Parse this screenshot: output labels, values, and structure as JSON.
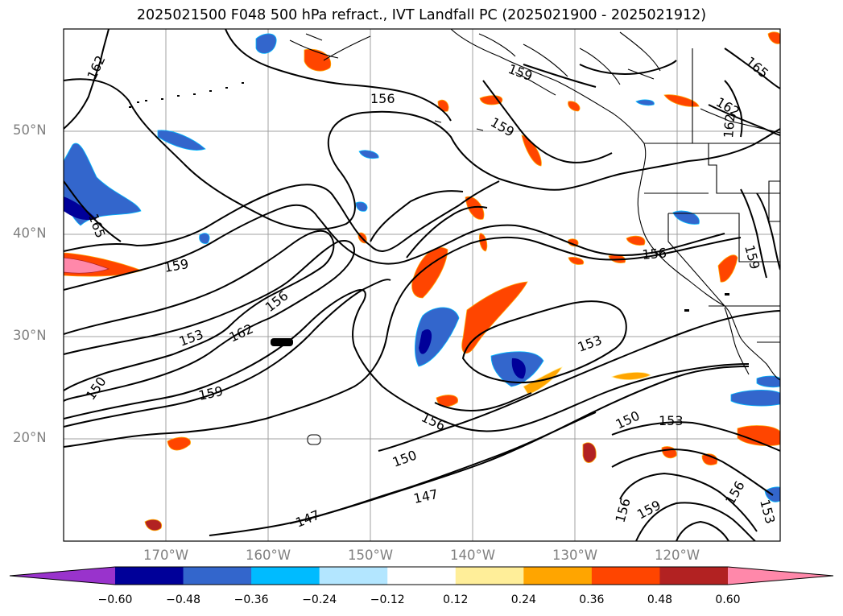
{
  "title": "2025021500 F048 500 hPa refract., IVT Landfall PC (2025021900 - 2025021912)",
  "lat_labels": [
    "50°N",
    "40°N",
    "30°N",
    "20°N"
  ],
  "lon_labels": [
    "170°W",
    "160°W",
    "150°W",
    "140°W",
    "130°W",
    "120°W"
  ],
  "contour_labels": [
    "162",
    "165",
    "159",
    "156",
    "153",
    "162",
    "150",
    "159",
    "156",
    "153",
    "150",
    "147",
    "147",
    "156",
    "159",
    "156",
    "150",
    "153",
    "159",
    "162",
    "162",
    "165",
    "159",
    "153",
    "156",
    "159",
    "156"
  ],
  "colorbar": {
    "colors": [
      "#9933cc",
      "#000099",
      "#3366cc",
      "#00bbff",
      "#b3e6ff",
      "#ffffff",
      "#ffee99",
      "#ffa500",
      "#ff4500",
      "#b22222",
      "#ff88aa"
    ],
    "tick_labels": [
      "−0.60",
      "−0.48",
      "−0.36",
      "−0.24",
      "−0.12",
      "0.12",
      "0.24",
      "0.36",
      "0.48",
      "0.60"
    ]
  },
  "colors": {
    "contour": "#000000",
    "grid": "#a0a0a0",
    "coast": "#000000"
  }
}
